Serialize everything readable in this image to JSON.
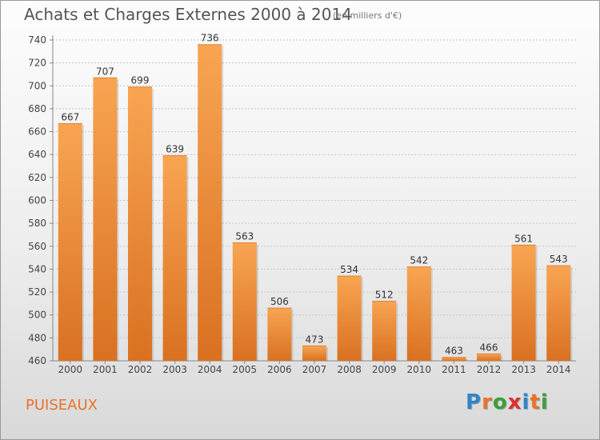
{
  "header": {
    "title": "Achats et Charges Externes 2000 à 2014",
    "subtitle": "(en milliers d'€)"
  },
  "footer": {
    "commune": "PUISEAUX",
    "logo": "Proxiti"
  },
  "colors": {
    "bar_light": "#f8a552",
    "bar_dark": "#d97121",
    "commune": "#e8732a",
    "logo_letters": [
      "#2e86c9",
      "#e8732a",
      "#3aa03a",
      "#e02e2e",
      "#2e86c9",
      "#e8732a",
      "#3aa03a"
    ]
  },
  "chart_data": {
    "type": "bar",
    "title": "Achats et Charges Externes 2000 à 2014",
    "subtitle": "(en milliers d'€)",
    "categories": [
      "2000",
      "2001",
      "2002",
      "2003",
      "2004",
      "2005",
      "2006",
      "2007",
      "2008",
      "2009",
      "2010",
      "2011",
      "2012",
      "2013",
      "2014"
    ],
    "values": [
      667,
      707,
      699,
      639,
      736,
      563,
      506,
      473,
      534,
      512,
      542,
      463,
      466,
      561,
      543
    ],
    "ylim": [
      460,
      740
    ],
    "yticks": [
      460,
      480,
      500,
      520,
      540,
      560,
      580,
      600,
      620,
      640,
      660,
      680,
      700,
      720,
      740
    ],
    "grid": true,
    "data_labels": true
  }
}
